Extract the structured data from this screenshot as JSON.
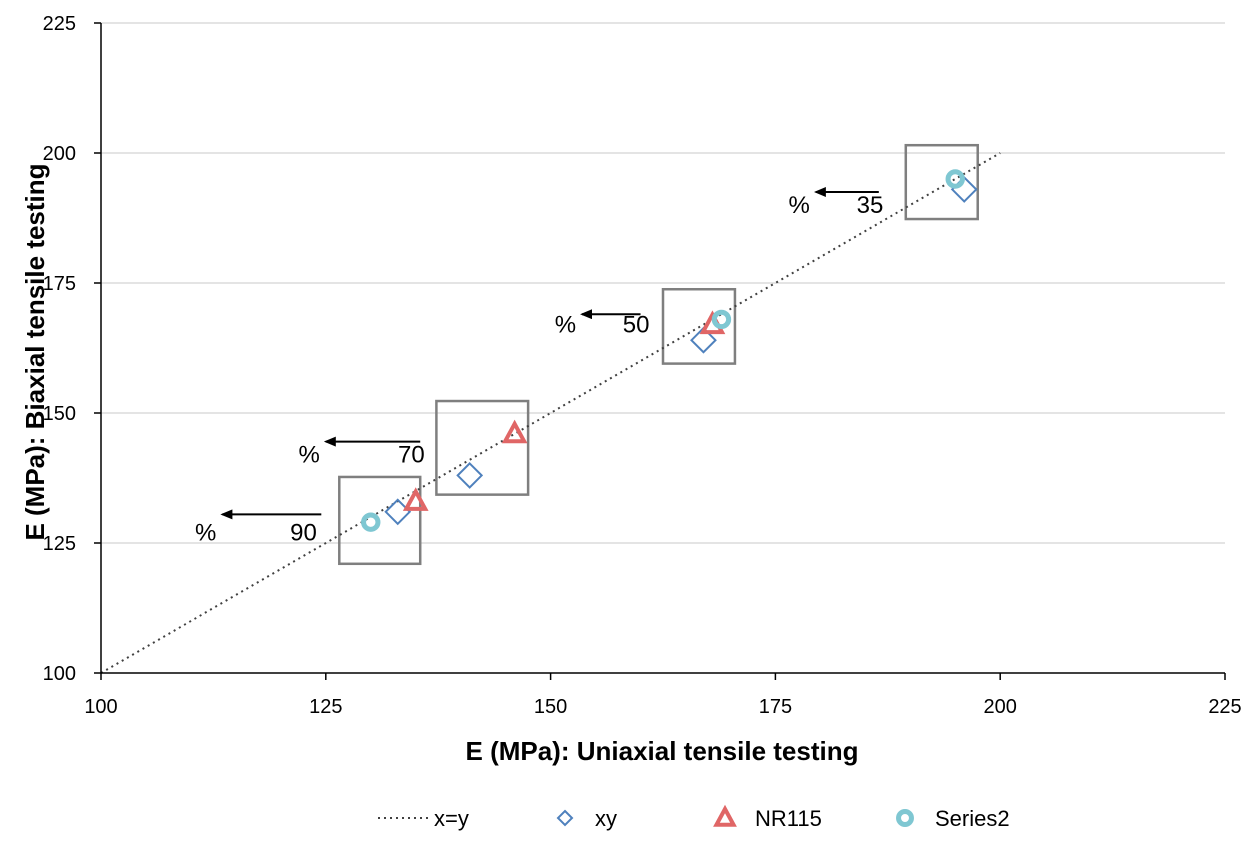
{
  "chart_data": {
    "type": "scatter",
    "title": "",
    "xlabel": "E (MPa): Uniaxial tensile testing",
    "ylabel": "E (MPa): Biaxial tensile testing",
    "xlim": [
      100,
      225
    ],
    "ylim": [
      100,
      225
    ],
    "xticks": [
      100,
      125,
      150,
      175,
      200,
      225
    ],
    "yticks": [
      100,
      125,
      150,
      175,
      200,
      225
    ],
    "grid": "horizontal",
    "legend_position": "bottom",
    "reference_line": {
      "name": "x=y",
      "x": [
        100,
        200
      ],
      "y": [
        100,
        200
      ],
      "style": "dotted",
      "color": "#404040"
    },
    "series": [
      {
        "name": "xy",
        "marker": "diamond",
        "color": "#4F81BD",
        "points": [
          [
            133,
            131
          ],
          [
            141,
            138
          ],
          [
            167,
            164
          ],
          [
            196,
            193
          ]
        ]
      },
      {
        "name": "NR115",
        "marker": "triangle",
        "color": "#E06666",
        "points": [
          [
            135,
            133
          ],
          [
            146,
            146
          ],
          [
            168,
            167
          ]
        ]
      },
      {
        "name": "Series2",
        "marker": "circle",
        "color": "#7FC7D2",
        "points": [
          [
            130,
            129
          ],
          [
            169,
            168
          ],
          [
            195,
            195
          ]
        ]
      }
    ],
    "annotations": [
      {
        "number": "35",
        "unit": "%",
        "text_x": 187,
        "text_y": 190,
        "arrow_from_x": 186.5,
        "arrow_to_x": 179.5,
        "arrow_y": 192.5,
        "box": {
          "x0": 189.5,
          "x1": 197.5,
          "y0": 187.3,
          "y1": 201.5
        }
      },
      {
        "number": "50",
        "unit": "%",
        "text_x": 161,
        "text_y": 167,
        "arrow_from_x": 160,
        "arrow_to_x": 153.5,
        "arrow_y": 169,
        "box": {
          "x0": 162.5,
          "x1": 170.5,
          "y0": 159.5,
          "y1": 173.8
        }
      },
      {
        "number": "70",
        "unit": "%",
        "text_x": 136,
        "text_y": 142,
        "arrow_from_x": 135.5,
        "arrow_to_x": 125,
        "arrow_y": 144.5,
        "box": {
          "x0": 137.3,
          "x1": 147.5,
          "y0": 134.3,
          "y1": 152.3
        }
      },
      {
        "number": "90",
        "unit": "%",
        "text_x": 124,
        "text_y": 127,
        "arrow_from_x": 124.5,
        "arrow_to_x": 113.5,
        "arrow_y": 130.5,
        "box": {
          "x0": 126.5,
          "x1": 135.5,
          "y0": 121,
          "y1": 137.7
        }
      }
    ]
  }
}
